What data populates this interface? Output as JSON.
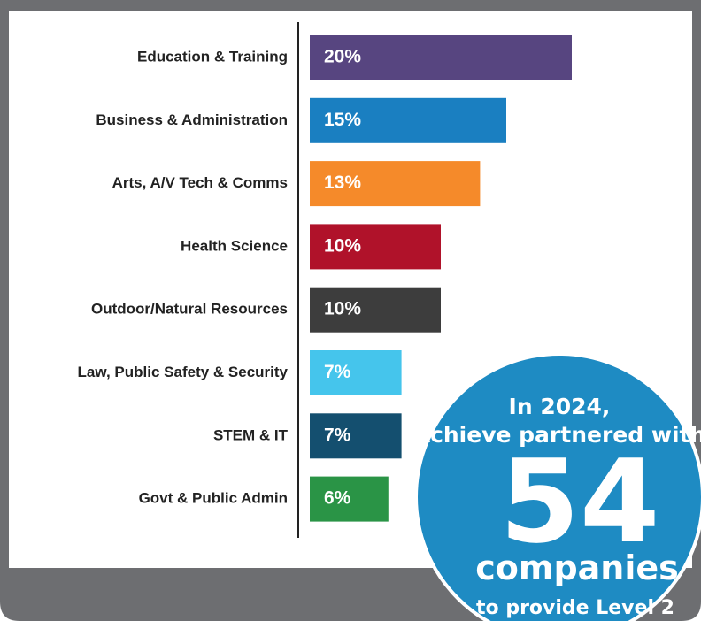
{
  "chart_data": {
    "type": "bar",
    "orientation": "horizontal",
    "categories": [
      "Education & Training",
      "Business & Administration",
      "Arts, A/V Tech & Comms",
      "Health Science",
      "Outdoor/Natural Resources",
      "Law, Public Safety & Security",
      "STEM & IT",
      "Govt & Public Admin"
    ],
    "values": [
      20,
      15,
      13,
      10,
      10,
      7,
      7,
      6
    ],
    "value_labels": [
      "20%",
      "15%",
      "13%",
      "10%",
      "10%",
      "7%",
      "7%",
      "6%"
    ],
    "colors": [
      "#574580",
      "#1a7fc1",
      "#f58a2a",
      "#b0122a",
      "#3d3d3d",
      "#45c5ec",
      "#144f6f",
      "#2a9446"
    ]
  },
  "callout": {
    "line1": "In 2024,",
    "line2": "Achieve partnered with",
    "number": "54",
    "line3": "companies",
    "line4": "to provide Level 2"
  }
}
